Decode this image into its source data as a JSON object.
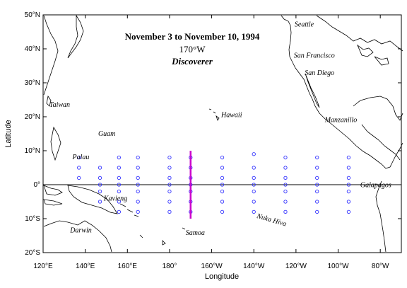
{
  "title": {
    "line1": "November 3 to November 10, 1994",
    "line2": "170°W",
    "line3": "Discoverer"
  },
  "axes": {
    "xlabel": "Longitude",
    "ylabel": "Latitude",
    "xlim": [
      120,
      290
    ],
    "ylim": [
      -20,
      50
    ],
    "xticks": [
      {
        "value": 120,
        "label": "120°E"
      },
      {
        "value": 140,
        "label": "140°E"
      },
      {
        "value": 160,
        "label": "160°E"
      },
      {
        "value": 180,
        "label": "180°"
      },
      {
        "value": 200,
        "label": "160°W"
      },
      {
        "value": 220,
        "label": "140°W"
      },
      {
        "value": 240,
        "label": "120°W"
      },
      {
        "value": 260,
        "label": "100°W"
      },
      {
        "value": 280,
        "label": "80°W"
      }
    ],
    "yticks": [
      {
        "value": 50,
        "label": "50°N"
      },
      {
        "value": 40,
        "label": "40°N"
      },
      {
        "value": 30,
        "label": "30°N"
      },
      {
        "value": 20,
        "label": "20°N"
      },
      {
        "value": 10,
        "label": "10°N"
      },
      {
        "value": 0,
        "label": "0°"
      },
      {
        "value": -10,
        "label": "10°S"
      },
      {
        "value": -20,
        "label": "20°S"
      }
    ]
  },
  "places": [
    {
      "label": "Seattle",
      "lon": 238,
      "lat": 47.6
    },
    {
      "label": "San Francisco",
      "lon": 237.6,
      "lat": 37.8
    },
    {
      "label": "San Diego",
      "lon": 242.8,
      "lat": 32.7
    },
    {
      "label": "Taiwan",
      "lon": 121,
      "lat": 23.5
    },
    {
      "label": "Hawaii",
      "lon": 202.5,
      "lat": 20.5
    },
    {
      "label": "Manzanillo",
      "lon": 255.7,
      "lat": 19.1
    },
    {
      "label": "Guam",
      "lon": 144.8,
      "lat": 13.5
    },
    {
      "label": "Palau",
      "lon": 134.6,
      "lat": 7.5
    },
    {
      "label": "Galapagos",
      "lon": 270.5,
      "lat": -0.7
    },
    {
      "label": "Kavieng",
      "lon": 150.8,
      "lat": -2.6
    },
    {
      "label": "Nuka Hiva",
      "lon": 219.9,
      "lat": -8.9
    },
    {
      "label": "Darwin",
      "lon": 130.8,
      "lat": -12.4
    },
    {
      "label": "Samoa",
      "lon": 188.3,
      "lat": -13.8
    }
  ],
  "moorings": {
    "columns": [
      {
        "lon": 137,
        "lats": [
          8,
          5,
          2
        ]
      },
      {
        "lon": 147,
        "lats": [
          5,
          2,
          0,
          -2,
          -5
        ]
      },
      {
        "lon": 156,
        "lats": [
          8,
          5,
          2,
          0,
          -2,
          -5,
          -8
        ]
      },
      {
        "lon": 165,
        "lats": [
          8,
          5,
          2,
          0,
          -2,
          -5,
          -8
        ]
      },
      {
        "lon": 180,
        "lats": [
          8,
          5,
          2,
          0,
          -2,
          -5,
          -8
        ]
      },
      {
        "lon": 190,
        "lats": [
          8,
          5,
          2,
          0,
          -2,
          -5,
          -8
        ]
      },
      {
        "lon": 205,
        "lats": [
          8,
          5,
          2,
          0,
          -2,
          -5,
          -8
        ]
      },
      {
        "lon": 220,
        "lats": [
          9,
          5,
          2,
          0,
          -2,
          -5,
          -8
        ]
      },
      {
        "lon": 235,
        "lats": [
          8,
          5,
          2,
          0,
          -2,
          -5,
          -8
        ]
      },
      {
        "lon": 250,
        "lats": [
          8,
          5,
          2,
          0,
          -2,
          -5,
          -8
        ]
      },
      {
        "lon": 265,
        "lats": [
          8,
          5,
          2,
          0,
          -2,
          -5,
          -8
        ]
      }
    ],
    "marker_color": "#3333ff"
  },
  "cruise_track": {
    "lon": 190,
    "lat_start": -10,
    "lat_end": 10,
    "color": "#cc00cc"
  }
}
